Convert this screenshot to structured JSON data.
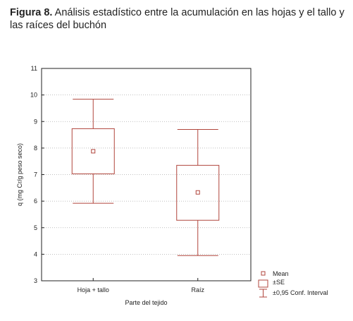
{
  "figure": {
    "label": "Figura 8.",
    "caption": " Análisis estadístico entre la acumulación en las hojas y el tallo y las raíces del buchón"
  },
  "chart_data": {
    "type": "box",
    "title": "",
    "xlabel": "Parte del tejido",
    "ylabel": "q (mg Cr/g peso seco)",
    "ylim": [
      3,
      11
    ],
    "yticks": [
      3,
      4,
      5,
      6,
      7,
      8,
      9,
      10,
      11
    ],
    "grid": true,
    "legend_position": "bottom-right",
    "color": "#b0453c",
    "categories": [
      "Hoja + tallo",
      "Raíz"
    ],
    "series": [
      {
        "category": "Hoja + tallo",
        "mean": 7.88,
        "se_low": 7.03,
        "se_high": 8.73,
        "ci_low": 5.92,
        "ci_high": 9.84
      },
      {
        "category": "Raíz",
        "mean": 6.33,
        "se_low": 5.28,
        "se_high": 7.35,
        "ci_low": 3.95,
        "ci_high": 8.7
      }
    ],
    "legend": [
      "Mean",
      "±SE",
      "±0,95 Conf. Interval"
    ]
  }
}
